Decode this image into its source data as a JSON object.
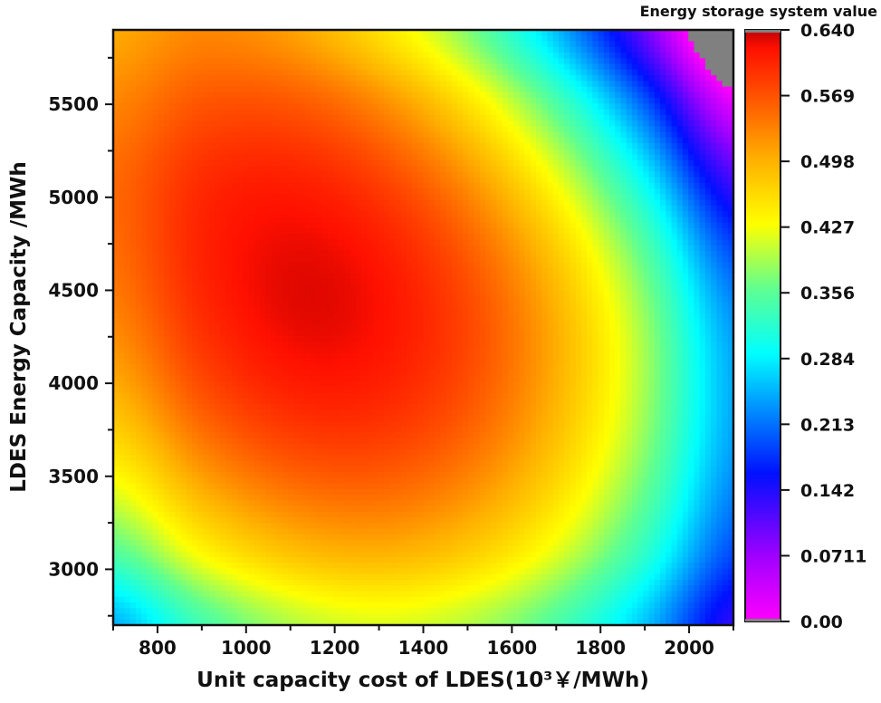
{
  "chart_data": {
    "type": "heatmap",
    "title": "",
    "xlabel": "Unit capacity cost of LDES(10³￥/MWh)",
    "ylabel": "LDES Energy Capacity /MWh",
    "xlim": [
      700,
      2100
    ],
    "ylim": [
      2700,
      5900
    ],
    "x_ticks": [
      800,
      1000,
      1200,
      1400,
      1600,
      1800,
      2000
    ],
    "y_ticks": [
      3000,
      3500,
      4000,
      4500,
      5000,
      5500
    ],
    "colorbar": {
      "title": "Energy storage system value",
      "range": [
        0,
        0.64
      ],
      "ticks": [
        "0.640",
        "0.569",
        "0.498",
        "0.427",
        "0.356",
        "0.284",
        "0.213",
        "0.142",
        "0.0711",
        "0.00"
      ],
      "colormap": [
        [
          0.0,
          "#ff00ff"
        ],
        [
          0.07,
          "#a000ff"
        ],
        [
          0.16,
          "#0010ff"
        ],
        [
          0.23,
          "#0090ff"
        ],
        [
          0.29,
          "#00ffff"
        ],
        [
          0.36,
          "#60ff90"
        ],
        [
          0.43,
          "#ffff00"
        ],
        [
          0.5,
          "#ffb000"
        ],
        [
          0.57,
          "#ff5000"
        ],
        [
          0.62,
          "#ff1000"
        ],
        [
          0.64,
          "#c00000"
        ]
      ],
      "out_of_range_color": "#808080"
    },
    "grid_x": [
      700,
      900,
      1100,
      1300,
      1500,
      1700,
      1900,
      2100
    ],
    "grid_y": [
      2700,
      3100,
      3500,
      3900,
      4300,
      4700,
      5100,
      5500,
      5900
    ],
    "z": [
      [
        0.247,
        0.339,
        0.395,
        0.415,
        0.398,
        0.346,
        0.258,
        0.134
      ],
      [
        0.352,
        0.437,
        0.486,
        0.5,
        0.477,
        0.419,
        0.324,
        0.193
      ],
      [
        0.433,
        0.512,
        0.555,
        0.562,
        0.533,
        0.468,
        0.367,
        0.23
      ],
      [
        0.492,
        0.565,
        0.602,
        0.602,
        0.567,
        0.495,
        0.388,
        0.245
      ],
      [
        0.529,
        0.595,
        0.626,
        0.619,
        0.578,
        0.5,
        0.386,
        0.236
      ],
      [
        0.549,
        0.606,
        0.627,
        0.613,
        0.562,
        0.476,
        0.353,
        0.194
      ],
      [
        0.552,
        0.598,
        0.608,
        0.582,
        0.521,
        0.423,
        0.289,
        0.119
      ],
      [
        0.532,
        0.567,
        0.566,
        0.529,
        0.456,
        0.347,
        0.202,
        0.021
      ],
      [
        0.505,
        0.53,
        0.512,
        0.458,
        0.375,
        0.255,
        0.1,
        -0.09
      ]
    ],
    "grid": false
  }
}
